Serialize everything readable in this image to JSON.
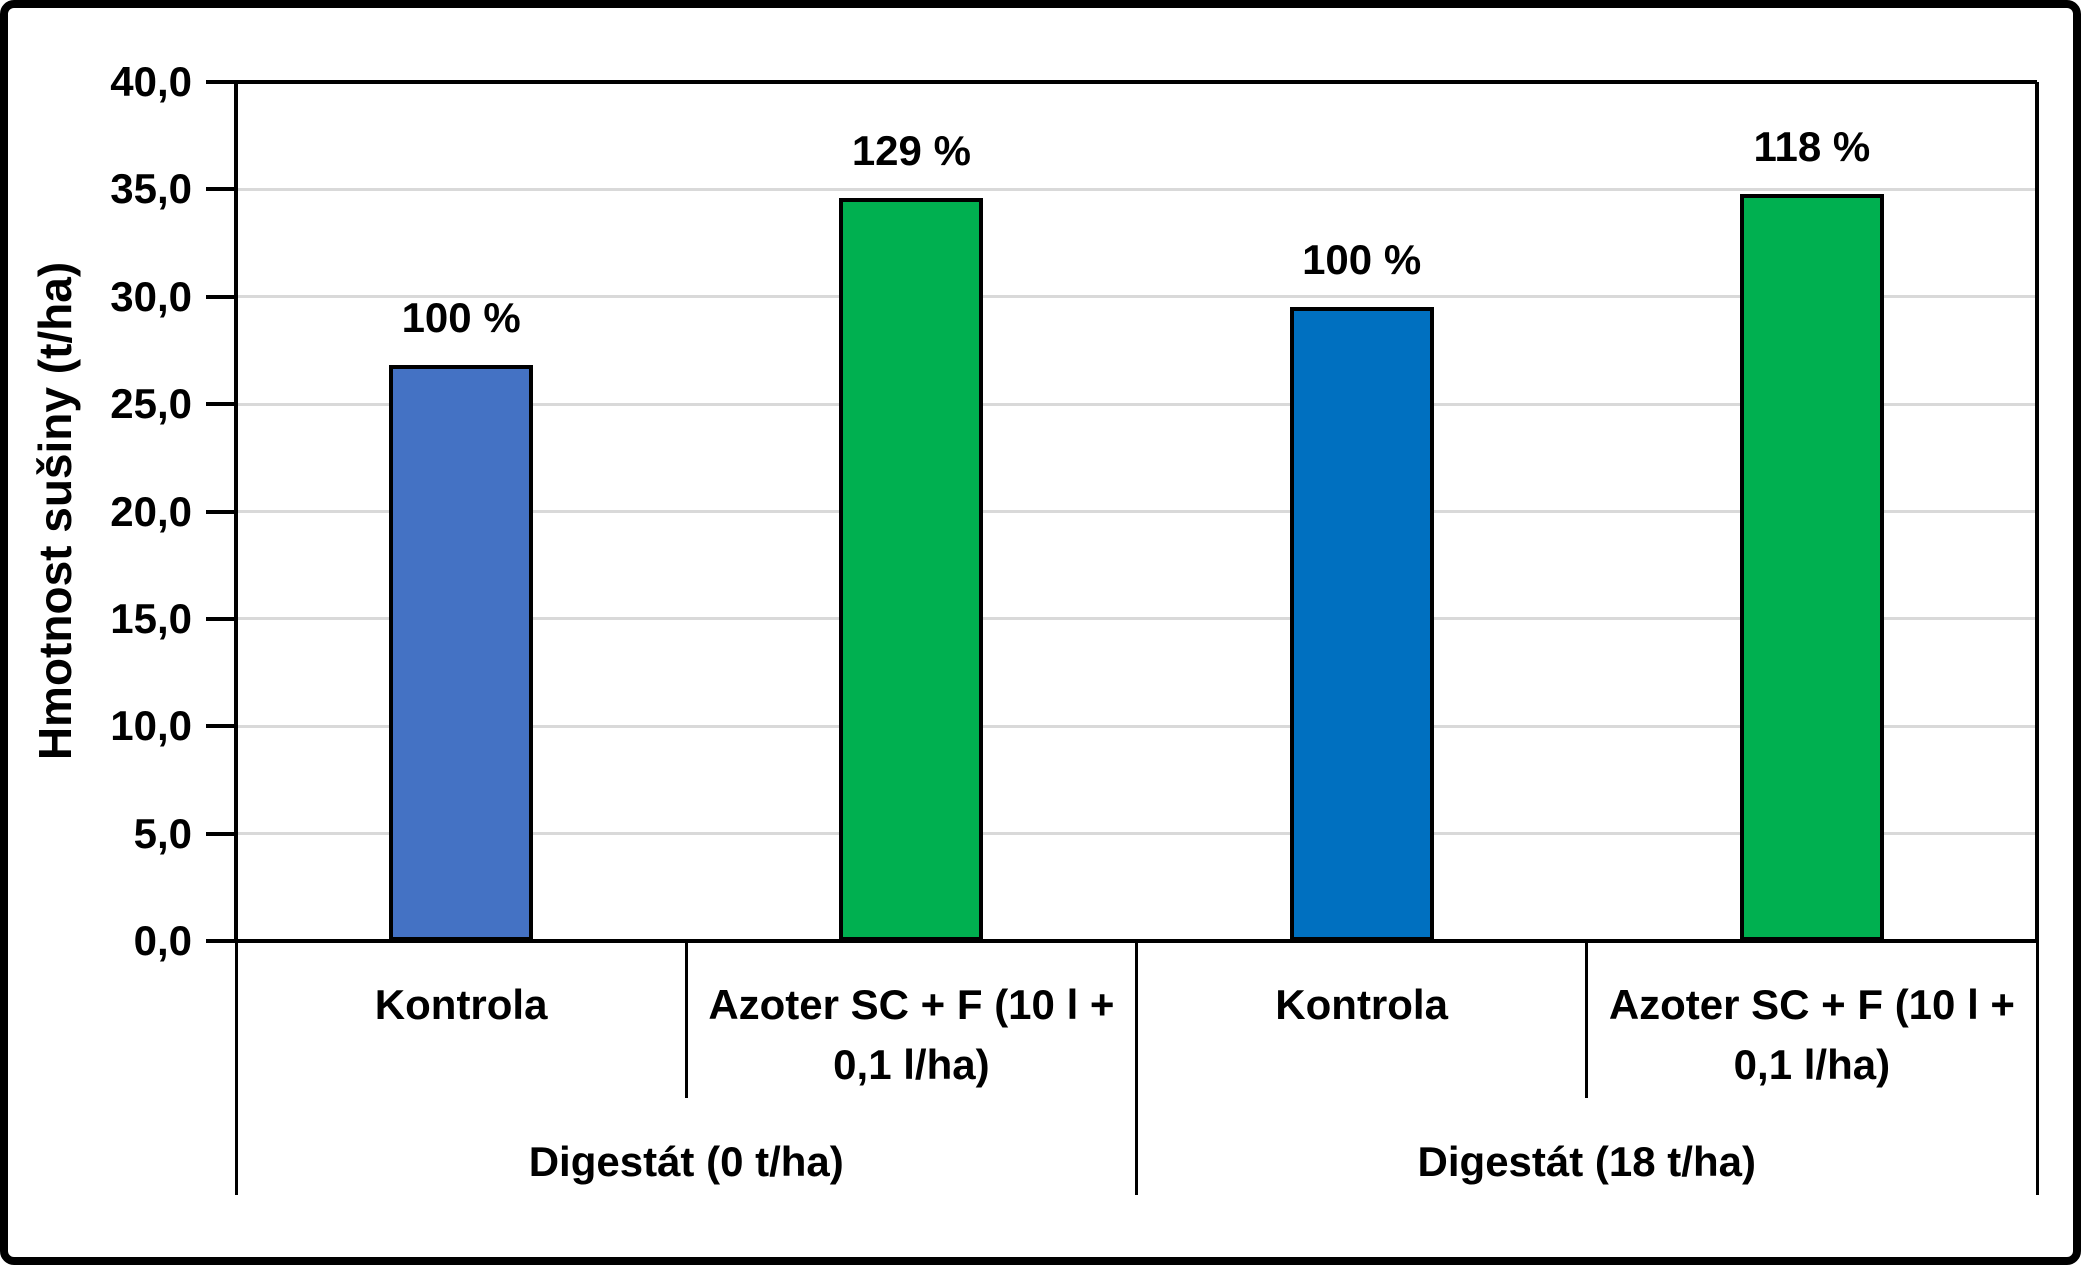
{
  "figure": {
    "background": "#FFFFFF",
    "border_color": "#000000"
  },
  "chart_data": {
    "type": "bar",
    "title": "",
    "ylabel": "Hmotnost sušiny (t/ha)",
    "xlabel": "",
    "ylim": [
      0,
      40
    ],
    "ytick_step": 5,
    "grid": "horizontal",
    "gridline_color": "#D9D9D9",
    "axis_color": "#000000",
    "legend": "none",
    "y_ticks": [
      {
        "value": 40,
        "label": "40,0"
      },
      {
        "value": 35,
        "label": "35,0"
      },
      {
        "value": 30,
        "label": "30,0"
      },
      {
        "value": 25,
        "label": "25,0"
      },
      {
        "value": 20,
        "label": "20,0"
      },
      {
        "value": 15,
        "label": "15,0"
      },
      {
        "value": 10,
        "label": "10,0"
      },
      {
        "value": 5,
        "label": "5,0"
      },
      {
        "value": 0,
        "label": "0,0"
      }
    ],
    "groups": [
      {
        "label": "Digestát (0 t/ha)",
        "bars": [
          {
            "category": "Kontrola",
            "category_lines": [
              "Kontrola"
            ],
            "value": 26.8,
            "data_label": "100 %",
            "color": "#4472C4",
            "border_color": "#000000"
          },
          {
            "category": "Azoter SC + F (10 l + 0,1 l/ha)",
            "category_lines": [
              "Azoter SC + F (10 l +",
              "0,1 l/ha)"
            ],
            "value": 34.6,
            "data_label": "129 %",
            "color": "#00B050",
            "border_color": "#000000"
          }
        ]
      },
      {
        "label": "Digestát (18 t/ha)",
        "bars": [
          {
            "category": "Kontrola",
            "category_lines": [
              "Kontrola"
            ],
            "value": 29.5,
            "data_label": "100 %",
            "color": "#0070C0",
            "border_color": "#000000"
          },
          {
            "category": "Azoter SC + F (10 l + 0,1 l/ha)",
            "category_lines": [
              "Azoter SC + F (10 l +",
              "0,1 l/ha)"
            ],
            "value": 34.8,
            "data_label": "118 %",
            "color": "#00B050",
            "border_color": "#000000"
          }
        ]
      }
    ]
  }
}
